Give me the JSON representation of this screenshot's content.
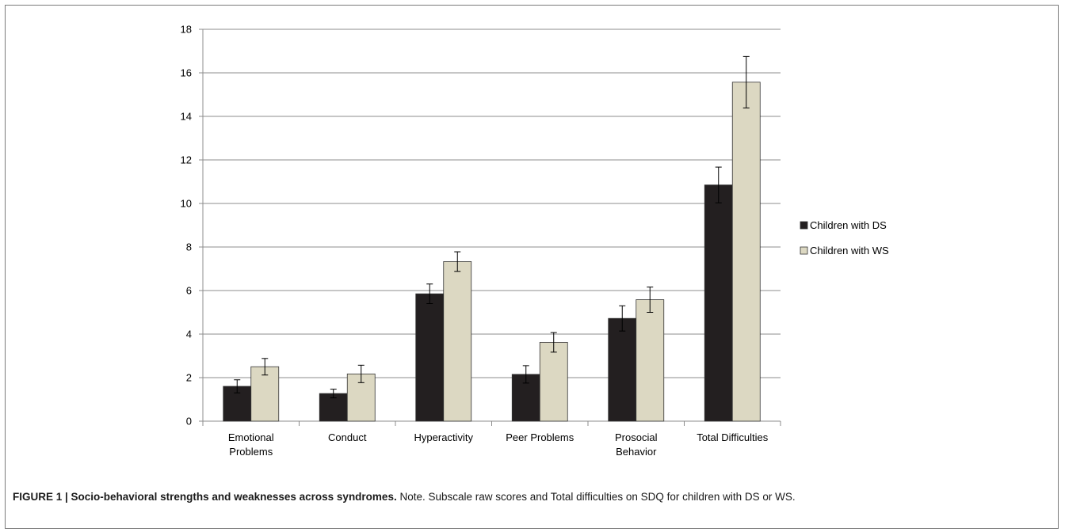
{
  "chart_data": {
    "type": "bar",
    "categories": [
      [
        "Emotional",
        "Problems"
      ],
      [
        "Conduct"
      ],
      [
        "Hyperactivity"
      ],
      [
        "Peer Problems"
      ],
      [
        "Prosocial",
        "Behavior"
      ],
      [
        "Total Difficulties"
      ]
    ],
    "series": [
      {
        "name": "Children with DS",
        "color": "#231f20",
        "values": [
          1.6,
          1.27,
          5.85,
          2.15,
          4.72,
          10.85
        ],
        "errors": [
          0.3,
          0.2,
          0.45,
          0.4,
          0.58,
          0.82
        ]
      },
      {
        "name": "Children with WS",
        "color": "#dcd8c2",
        "values": [
          2.5,
          2.17,
          7.33,
          3.62,
          5.58,
          15.57
        ],
        "errors": [
          0.38,
          0.4,
          0.45,
          0.45,
          0.58,
          1.18
        ]
      }
    ],
    "ylim": [
      0,
      18
    ],
    "yticks": [
      0,
      2,
      4,
      6,
      8,
      10,
      12,
      14,
      16,
      18
    ],
    "grid": true,
    "legend_position": "right",
    "title": "",
    "xlabel": "",
    "ylabel": ""
  },
  "caption": {
    "label": "FIGURE 1 | Socio-behavioral strengths and weaknesses across syndromes.",
    "text": " Note. Subscale raw scores and Total difficulties on SDQ for children with DS or WS."
  }
}
